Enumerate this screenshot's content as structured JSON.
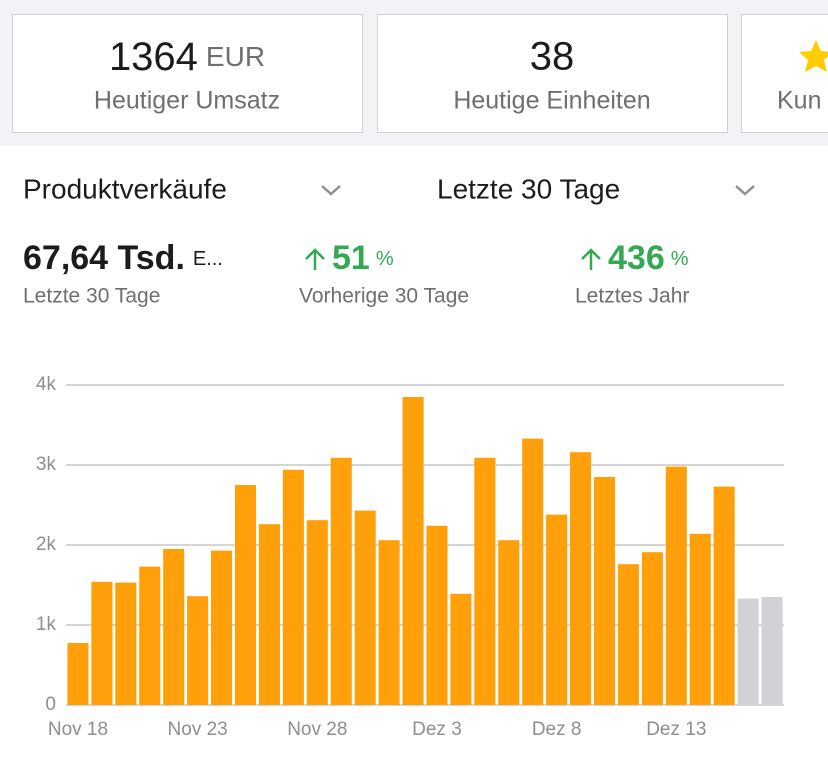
{
  "cards": [
    {
      "value": 1364,
      "unit": "EUR",
      "label": "Heutiger Umsatz"
    },
    {
      "value": 38,
      "label": "Heutige Einheiten"
    },
    {
      "label": "Kun"
    }
  ],
  "selectors": [
    "Produktverkäufe",
    "Letzte 30 Tage"
  ],
  "stats": [
    {
      "value": "67,64 Tsd.",
      "unit": "E...",
      "label": "Letzte 30 Tage"
    },
    {
      "value": 51,
      "unit": "%",
      "label": "Vorherige 30 Tage"
    },
    {
      "value": 436,
      "unit": "%",
      "label": "Letztes Jahr"
    }
  ],
  "chart_data": {
    "type": "bar",
    "categories": [
      "Nov 18",
      null,
      null,
      null,
      null,
      "Nov 23",
      null,
      null,
      null,
      null,
      "Nov 28",
      null,
      null,
      null,
      null,
      "Dez 3",
      null,
      null,
      null,
      null,
      "Dez 8",
      null,
      null,
      null,
      null,
      "Dez 13",
      null,
      null,
      null,
      null
    ],
    "values": [
      775,
      1540,
      1530,
      1730,
      1950,
      1360,
      1930,
      2750,
      2260,
      2940,
      2310,
      3090,
      2430,
      2060,
      3850,
      2240,
      1390,
      3090,
      2060,
      3330,
      2380,
      3160,
      2850,
      1760,
      1910,
      2980,
      2140,
      2730,
      1330,
      1350
    ],
    "colors": [
      "#ff9f0a",
      "#ff9f0a",
      "#ff9f0a",
      "#ff9f0a",
      "#ff9f0a",
      "#ff9f0a",
      "#ff9f0a",
      "#ff9f0a",
      "#ff9f0a",
      "#ff9f0a",
      "#ff9f0a",
      "#ff9f0a",
      "#ff9f0a",
      "#ff9f0a",
      "#ff9f0a",
      "#ff9f0a",
      "#ff9f0a",
      "#ff9f0a",
      "#ff9f0a",
      "#ff9f0a",
      "#ff9f0a",
      "#ff9f0a",
      "#ff9f0a",
      "#ff9f0a",
      "#ff9f0a",
      "#ff9f0a",
      "#ff9f0a",
      "#ff9f0a",
      "#d1d1d6",
      "#d1d1d6"
    ],
    "ylim": [
      0,
      4000
    ],
    "yticks": [
      0,
      {
        "value": 1000,
        "label": "1k"
      },
      {
        "value": 2000,
        "label": "2k"
      },
      {
        "value": 3000,
        "label": "3k"
      },
      {
        "value": 4000,
        "label": "4k"
      }
    ],
    "grid": true
  }
}
